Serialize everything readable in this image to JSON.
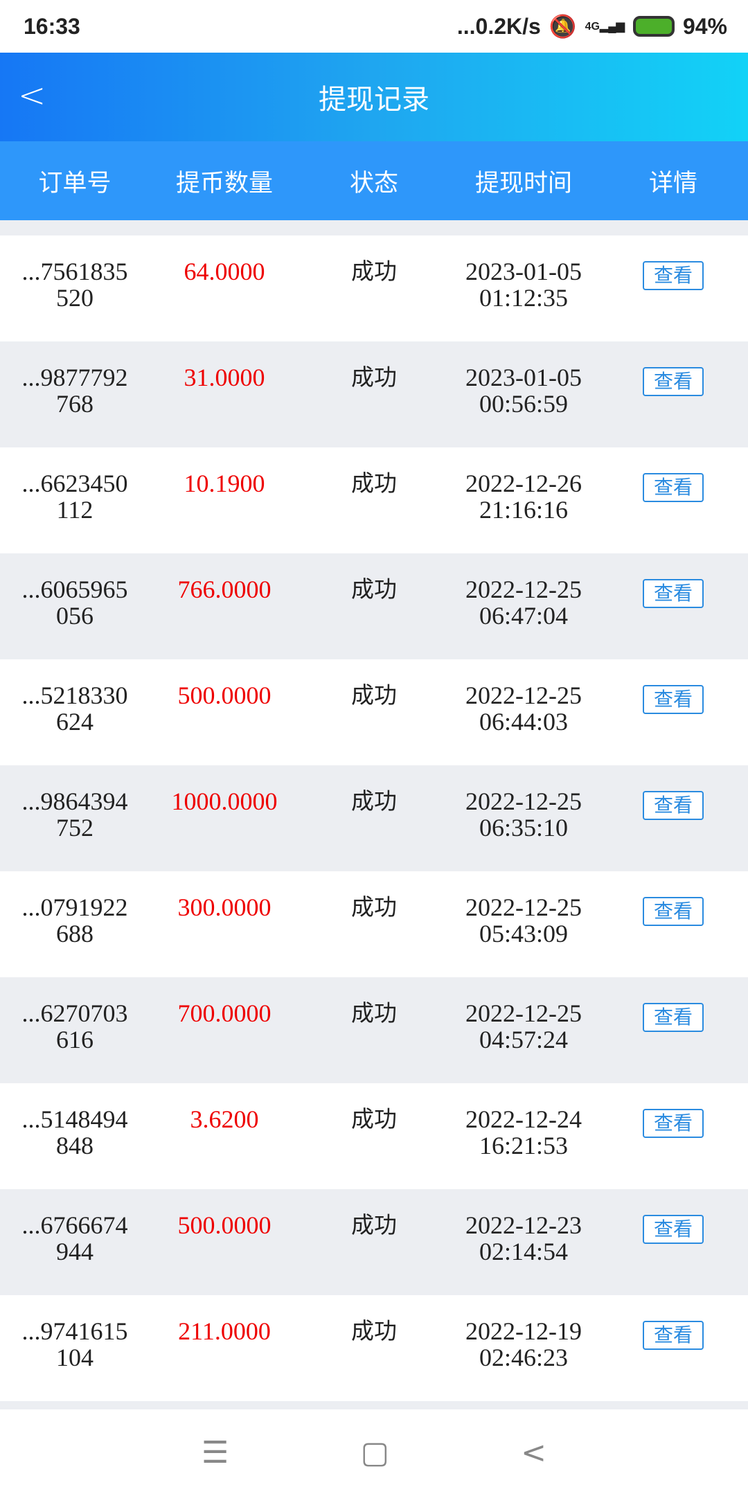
{
  "status_bar": {
    "time": "16:33",
    "net_speed": "...0.2K/s",
    "network": "4G",
    "battery": "94%"
  },
  "header": {
    "title": "提现记录"
  },
  "columns": [
    "订单号",
    "提币数量",
    "状态",
    "提现时间",
    "详情"
  ],
  "rows": [
    {
      "id1": "...7561835",
      "id2": "520",
      "amount": "64.0000",
      "status": "成功",
      "date": "2023-01-05",
      "time": "01:12:35",
      "action": "查看"
    },
    {
      "id1": "...9877792",
      "id2": "768",
      "amount": "31.0000",
      "status": "成功",
      "date": "2023-01-05",
      "time": "00:56:59",
      "action": "查看"
    },
    {
      "id1": "...6623450",
      "id2": "112",
      "amount": "10.1900",
      "status": "成功",
      "date": "2022-12-26",
      "time": "21:16:16",
      "action": "查看"
    },
    {
      "id1": "...6065965",
      "id2": "056",
      "amount": "766.0000",
      "status": "成功",
      "date": "2022-12-25",
      "time": "06:47:04",
      "action": "查看"
    },
    {
      "id1": "...5218330",
      "id2": "624",
      "amount": "500.0000",
      "status": "成功",
      "date": "2022-12-25",
      "time": "06:44:03",
      "action": "查看"
    },
    {
      "id1": "...9864394",
      "id2": "752",
      "amount": "1000.0000",
      "status": "成功",
      "date": "2022-12-25",
      "time": "06:35:10",
      "action": "查看"
    },
    {
      "id1": "...0791922",
      "id2": "688",
      "amount": "300.0000",
      "status": "成功",
      "date": "2022-12-25",
      "time": "05:43:09",
      "action": "查看"
    },
    {
      "id1": "...6270703",
      "id2": "616",
      "amount": "700.0000",
      "status": "成功",
      "date": "2022-12-25",
      "time": "04:57:24",
      "action": "查看"
    },
    {
      "id1": "...5148494",
      "id2": "848",
      "amount": "3.6200",
      "status": "成功",
      "date": "2022-12-24",
      "time": "16:21:53",
      "action": "查看"
    },
    {
      "id1": "...6766674",
      "id2": "944",
      "amount": "500.0000",
      "status": "成功",
      "date": "2022-12-23",
      "time": "02:14:54",
      "action": "查看"
    },
    {
      "id1": "...9741615",
      "id2": "104",
      "amount": "211.0000",
      "status": "成功",
      "date": "2022-12-19",
      "time": "02:46:23",
      "action": "查看"
    }
  ],
  "colors": {
    "accent": "#2e97fa",
    "amount": "#ee0000"
  }
}
